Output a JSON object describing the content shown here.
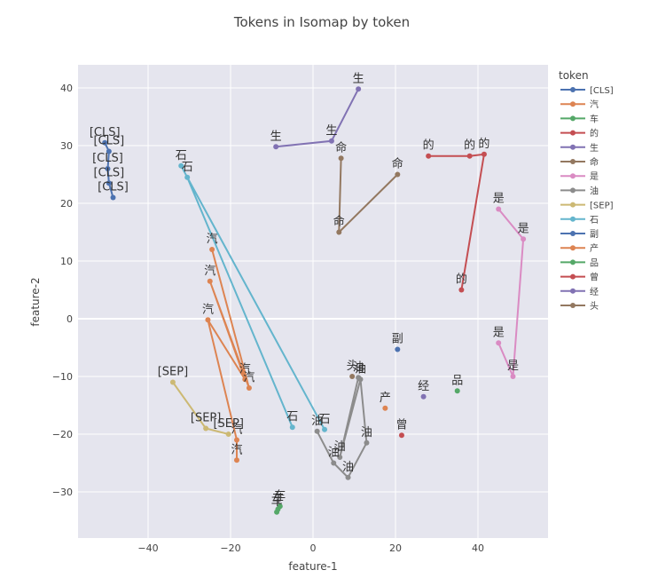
{
  "chart_data": {
    "type": "scatter",
    "title": "Tokens in Isomap by token",
    "xlabel": "feature-1",
    "ylabel": "feature-2",
    "xlim": [
      -57,
      57
    ],
    "ylim": [
      -38,
      44
    ],
    "xticks": [
      -40,
      -20,
      0,
      20,
      40
    ],
    "yticks": [
      -30,
      -20,
      -10,
      0,
      10,
      20,
      30,
      40
    ],
    "tick_labels_x": [
      "−40",
      "−20",
      "0",
      "20",
      "40"
    ],
    "tick_labels_y": [
      "−30",
      "−20",
      "−10",
      "0",
      "10",
      "20",
      "30",
      "40"
    ],
    "grid": true,
    "legend_title": "token",
    "legend_position": "right",
    "series": [
      {
        "name": "[CLS]",
        "color": "#4c72b0",
        "points": [
          {
            "x": -50.5,
            "y": 30.5,
            "label": "[CLS]"
          },
          {
            "x": -49.5,
            "y": 29.0,
            "label": "[CLS]"
          },
          {
            "x": -49.8,
            "y": 26.0,
            "label": "[CLS]"
          },
          {
            "x": -49.5,
            "y": 23.5,
            "label": "[CLS]"
          },
          {
            "x": -48.5,
            "y": 21.0,
            "label": "[CLS]"
          }
        ]
      },
      {
        "name": "汽",
        "color": "#dd8452",
        "points": [
          {
            "x": -24.5,
            "y": 12.0,
            "label": "汽"
          },
          {
            "x": -15.5,
            "y": -12.0,
            "label": "汽"
          },
          {
            "x": -25.0,
            "y": 6.5,
            "label": "汽"
          },
          {
            "x": -16.5,
            "y": -10.5,
            "label": "汽"
          },
          {
            "x": -25.5,
            "y": -0.2,
            "label": "汽"
          },
          {
            "x": -18.5,
            "y": -21.0,
            "label": "汽"
          },
          {
            "x": -18.5,
            "y": -24.5,
            "label": "汽"
          }
        ]
      },
      {
        "name": "车",
        "color": "#55a868",
        "points": [
          {
            "x": -8.8,
            "y": -33.5,
            "label": "车"
          },
          {
            "x": -8.5,
            "y": -33.0,
            "label": "车"
          },
          {
            "x": -8.0,
            "y": -32.5,
            "label": "车"
          }
        ]
      },
      {
        "name": "的",
        "color": "#c44e52",
        "points": [
          {
            "x": 28.0,
            "y": 28.2,
            "label": "的"
          },
          {
            "x": 38.0,
            "y": 28.2,
            "label": "的"
          },
          {
            "x": 41.5,
            "y": 28.5,
            "label": "的"
          },
          {
            "x": 36.0,
            "y": 5.0,
            "label": "的"
          }
        ]
      },
      {
        "name": "生",
        "color": "#8172b3",
        "points": [
          {
            "x": 11.0,
            "y": 39.8,
            "label": "生"
          },
          {
            "x": 4.5,
            "y": 30.8,
            "label": "生"
          },
          {
            "x": -9.0,
            "y": 29.8,
            "label": "生"
          }
        ]
      },
      {
        "name": "命",
        "color": "#937860",
        "points": [
          {
            "x": 6.8,
            "y": 27.8,
            "label": "命"
          },
          {
            "x": 6.3,
            "y": 15.0,
            "label": "命"
          },
          {
            "x": 20.5,
            "y": 25.0,
            "label": "命"
          }
        ]
      },
      {
        "name": "是",
        "color": "#da8bc3",
        "points": [
          {
            "x": 45.0,
            "y": 19.0,
            "label": "是"
          },
          {
            "x": 51.0,
            "y": 13.8,
            "label": "是"
          },
          {
            "x": 48.5,
            "y": -10.0,
            "label": "是"
          },
          {
            "x": 45.0,
            "y": -4.2,
            "label": "是"
          }
        ]
      },
      {
        "name": "油",
        "color": "#8c8c8c",
        "points": [
          {
            "x": 1.0,
            "y": -19.5,
            "label": "油"
          },
          {
            "x": 5.0,
            "y": -25.0,
            "label": "油"
          },
          {
            "x": 8.5,
            "y": -27.5,
            "label": "油"
          },
          {
            "x": 13.0,
            "y": -21.5,
            "label": "油"
          },
          {
            "x": 11.5,
            "y": -10.5,
            "label": "油"
          },
          {
            "x": 6.5,
            "y": -24.0,
            "label": "油"
          },
          {
            "x": 11.0,
            "y": -10.2,
            "label": "油"
          }
        ]
      },
      {
        "name": "[SEP]",
        "color": "#ccb974",
        "points": [
          {
            "x": -34.0,
            "y": -11.0,
            "label": "[SEP]"
          },
          {
            "x": -26.0,
            "y": -19.0,
            "label": "[SEP]"
          },
          {
            "x": -20.5,
            "y": -20.0,
            "label": "[SEP]"
          }
        ]
      },
      {
        "name": "石",
        "color": "#64b5cd",
        "points": [
          {
            "x": -32.0,
            "y": 26.5,
            "label": "石"
          },
          {
            "x": 2.8,
            "y": -19.2,
            "label": "石"
          },
          {
            "x": -30.5,
            "y": 24.5,
            "label": "石"
          },
          {
            "x": -5.0,
            "y": -18.8,
            "label": "石"
          }
        ]
      },
      {
        "name": "副",
        "color": "#4c72b0",
        "points": [
          {
            "x": 20.5,
            "y": -5.3,
            "label": "副"
          }
        ]
      },
      {
        "name": "产",
        "color": "#dd8452",
        "points": [
          {
            "x": 17.5,
            "y": -15.5,
            "label": "产"
          }
        ]
      },
      {
        "name": "品",
        "color": "#55a868",
        "points": [
          {
            "x": 35.0,
            "y": -12.5,
            "label": "品"
          }
        ]
      },
      {
        "name": "曾",
        "color": "#c44e52",
        "points": [
          {
            "x": 21.5,
            "y": -20.2,
            "label": "曾"
          }
        ]
      },
      {
        "name": "经",
        "color": "#8172b3",
        "points": [
          {
            "x": 26.8,
            "y": -13.5,
            "label": "经"
          }
        ]
      },
      {
        "name": "头",
        "color": "#937860",
        "points": [
          {
            "x": 9.5,
            "y": -10.0,
            "label": "头"
          }
        ]
      }
    ]
  },
  "colors": {
    "plot_background": "#e5e5ee",
    "grid": "#ffffff",
    "paper": "#ffffff"
  }
}
